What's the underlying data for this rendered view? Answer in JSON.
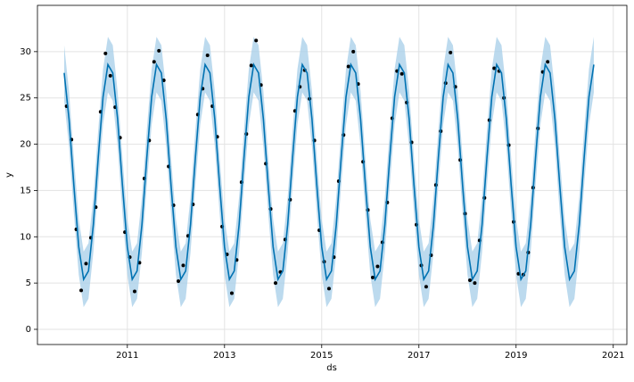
{
  "chart_data": {
    "type": "line",
    "xlabel": "ds",
    "ylabel": "y",
    "xlim": [
      2009.15,
      2021.28
    ],
    "ylim": [
      -1.64,
      35.0
    ],
    "xticks": [
      2011,
      2013,
      2015,
      2017,
      2019,
      2021
    ],
    "yticks": [
      0,
      5,
      10,
      15,
      20,
      25,
      30
    ],
    "grid": true,
    "band_color": "#a6cde8",
    "series": [
      {
        "type": "scatter",
        "color": "#000000",
        "x": [
          2009.75,
          2009.85,
          2009.95,
          2010.05,
          2010.15,
          2010.25,
          2010.35,
          2010.45,
          2010.55,
          2010.65,
          2010.75,
          2010.85,
          2010.95,
          2011.05,
          2011.15,
          2011.25,
          2011.35,
          2011.45,
          2011.55,
          2011.65,
          2011.75,
          2011.85,
          2011.95,
          2012.05,
          2012.15,
          2012.25,
          2012.35,
          2012.45,
          2012.55,
          2012.65,
          2012.75,
          2012.85,
          2012.95,
          2013.05,
          2013.15,
          2013.25,
          2013.35,
          2013.45,
          2013.55,
          2013.65,
          2013.75,
          2013.85,
          2013.95,
          2014.05,
          2014.15,
          2014.25,
          2014.35,
          2014.45,
          2014.55,
          2014.65,
          2014.75,
          2014.85,
          2014.95,
          2015.05,
          2015.15,
          2015.25,
          2015.35,
          2015.45,
          2015.55,
          2015.65,
          2015.75,
          2015.85,
          2015.95,
          2016.05,
          2016.15,
          2016.25,
          2016.35,
          2016.45,
          2016.55,
          2016.65,
          2016.75,
          2016.85,
          2016.95,
          2017.05,
          2017.15,
          2017.25,
          2017.35,
          2017.45,
          2017.55,
          2017.65,
          2017.75,
          2017.85,
          2017.95,
          2018.05,
          2018.15,
          2018.25,
          2018.35,
          2018.45,
          2018.55,
          2018.65,
          2018.75,
          2018.85,
          2018.95,
          2019.05,
          2019.15,
          2019.25,
          2019.35,
          2019.45,
          2019.55,
          2019.65
        ],
        "values": [
          24.1,
          20.5,
          10.8,
          4.2,
          7.1,
          9.9,
          13.2,
          23.5,
          29.8,
          27.4,
          24.0,
          20.7,
          10.5,
          7.8,
          4.1,
          7.2,
          16.3,
          20.4,
          28.9,
          30.1,
          26.9,
          17.6,
          13.4,
          5.2,
          6.9,
          10.1,
          13.5,
          23.2,
          26.0,
          29.6,
          24.1,
          20.8,
          11.1,
          8.1,
          3.9,
          7.5,
          15.9,
          21.1,
          28.5,
          31.2,
          26.4,
          17.9,
          13.0,
          5.0,
          6.2,
          9.7,
          14.0,
          23.6,
          26.2,
          28.0,
          24.9,
          20.4,
          10.7,
          7.3,
          4.4,
          7.8,
          16.0,
          21.0,
          28.4,
          30.0,
          26.5,
          18.1,
          12.9,
          5.6,
          6.8,
          9.4,
          13.7,
          22.8,
          27.9,
          27.6,
          24.5,
          20.2,
          11.3,
          6.9,
          4.6,
          8.0,
          15.6,
          21.4,
          26.6,
          29.9,
          26.2,
          18.3,
          12.5,
          5.3,
          5.0,
          9.6,
          14.2,
          22.6,
          28.2,
          27.9,
          25.0,
          19.9,
          11.6,
          6.0,
          5.9,
          8.3,
          15.3,
          21.7,
          27.8,
          28.9
        ]
      },
      {
        "type": "line",
        "color": "#0072b2",
        "x": [
          2009.7,
          2009.8,
          2009.9,
          2010.0,
          2010.1,
          2010.2,
          2010.3,
          2010.4,
          2010.5,
          2010.6,
          2010.7,
          2010.8,
          2010.9,
          2011.0,
          2011.1,
          2011.2,
          2011.3,
          2011.4,
          2011.5,
          2011.6,
          2011.7,
          2011.8,
          2011.9,
          2012.0,
          2012.1,
          2012.2,
          2012.3,
          2012.4,
          2012.5,
          2012.6,
          2012.7,
          2012.8,
          2012.9,
          2013.0,
          2013.1,
          2013.2,
          2013.3,
          2013.4,
          2013.5,
          2013.6,
          2013.7,
          2013.8,
          2013.9,
          2014.0,
          2014.1,
          2014.2,
          2014.3,
          2014.4,
          2014.5,
          2014.6,
          2014.7,
          2014.8,
          2014.9,
          2015.0,
          2015.1,
          2015.2,
          2015.3,
          2015.4,
          2015.5,
          2015.6,
          2015.7,
          2015.8,
          2015.9,
          2016.0,
          2016.1,
          2016.2,
          2016.3,
          2016.4,
          2016.5,
          2016.6,
          2016.7,
          2016.8,
          2016.9,
          2017.0,
          2017.1,
          2017.2,
          2017.3,
          2017.4,
          2017.5,
          2017.6,
          2017.7,
          2017.8,
          2017.9,
          2018.0,
          2018.1,
          2018.2,
          2018.3,
          2018.4,
          2018.5,
          2018.6,
          2018.7,
          2018.8,
          2018.9,
          2019.0,
          2019.1,
          2019.2,
          2019.3,
          2019.4,
          2019.5,
          2019.6,
          2019.7,
          2019.8,
          2019.9,
          2020.0,
          2020.1,
          2020.2,
          2020.3,
          2020.4,
          2020.5,
          2020.6
        ],
        "values": [
          27.7,
          22.7,
          15.5,
          8.9,
          5.4,
          6.3,
          11.3,
          18.5,
          25.1,
          28.6,
          27.7,
          22.7,
          15.5,
          8.9,
          5.4,
          6.3,
          11.3,
          18.5,
          25.1,
          28.6,
          27.7,
          22.7,
          15.5,
          8.9,
          5.4,
          6.3,
          11.3,
          18.5,
          25.1,
          28.6,
          27.7,
          22.7,
          15.5,
          8.9,
          5.4,
          6.3,
          11.3,
          18.5,
          25.1,
          28.6,
          27.7,
          22.7,
          15.5,
          8.9,
          5.4,
          6.3,
          11.3,
          18.5,
          25.1,
          28.6,
          27.7,
          22.7,
          15.5,
          8.9,
          5.4,
          6.3,
          11.3,
          18.5,
          25.1,
          28.6,
          27.7,
          22.7,
          15.5,
          8.9,
          5.4,
          6.3,
          11.3,
          18.5,
          25.1,
          28.6,
          27.7,
          22.7,
          15.5,
          8.9,
          5.4,
          6.3,
          11.3,
          18.5,
          25.1,
          28.6,
          27.7,
          22.7,
          15.5,
          8.9,
          5.4,
          6.3,
          11.3,
          18.5,
          25.1,
          28.6,
          27.7,
          22.7,
          15.5,
          8.9,
          5.4,
          6.3,
          11.3,
          18.5,
          25.1,
          28.6,
          27.7,
          22.7,
          15.5,
          8.9,
          5.4,
          6.3,
          11.3,
          18.5,
          25.1,
          28.6
        ],
        "lower": [
          24.7,
          19.7,
          12.5,
          5.9,
          2.4,
          3.3,
          8.3,
          15.5,
          22.1,
          25.6,
          24.7,
          19.7,
          12.5,
          5.9,
          2.4,
          3.3,
          8.3,
          15.5,
          22.1,
          25.6,
          24.7,
          19.7,
          12.5,
          5.9,
          2.4,
          3.3,
          8.3,
          15.5,
          22.1,
          25.6,
          24.7,
          19.7,
          12.5,
          5.9,
          2.4,
          3.3,
          8.3,
          15.5,
          22.1,
          25.6,
          24.7,
          19.7,
          12.5,
          5.9,
          2.4,
          3.3,
          8.3,
          15.5,
          22.1,
          25.6,
          24.7,
          19.7,
          12.5,
          5.9,
          2.4,
          3.3,
          8.3,
          15.5,
          22.1,
          25.6,
          24.7,
          19.7,
          12.5,
          5.9,
          2.4,
          3.3,
          8.3,
          15.5,
          22.1,
          25.6,
          24.7,
          19.7,
          12.5,
          5.9,
          2.4,
          3.3,
          8.3,
          15.5,
          22.1,
          25.6,
          24.7,
          19.7,
          12.5,
          5.9,
          2.4,
          3.3,
          8.3,
          15.5,
          22.1,
          25.6,
          24.7,
          19.7,
          12.5,
          5.9,
          2.4,
          3.3,
          8.3,
          15.5,
          22.1,
          25.6,
          24.7,
          19.7,
          12.5,
          5.9,
          2.4,
          3.3,
          8.3,
          15.5,
          22.1,
          25.6
        ],
        "upper": [
          30.7,
          25.7,
          18.5,
          11.9,
          8.4,
          9.3,
          14.3,
          21.5,
          28.1,
          31.6,
          30.7,
          25.7,
          18.5,
          11.9,
          8.4,
          9.3,
          14.3,
          21.5,
          28.1,
          31.6,
          30.7,
          25.7,
          18.5,
          11.9,
          8.4,
          9.3,
          14.3,
          21.5,
          28.1,
          31.6,
          30.7,
          25.7,
          18.5,
          11.9,
          8.4,
          9.3,
          14.3,
          21.5,
          28.1,
          31.6,
          30.7,
          25.7,
          18.5,
          11.9,
          8.4,
          9.3,
          14.3,
          21.5,
          28.1,
          31.6,
          30.7,
          25.7,
          18.5,
          11.9,
          8.4,
          9.3,
          14.3,
          21.5,
          28.1,
          31.6,
          30.7,
          25.7,
          18.5,
          11.9,
          8.4,
          9.3,
          14.3,
          21.5,
          28.1,
          31.6,
          30.7,
          25.7,
          18.5,
          11.9,
          8.4,
          9.3,
          14.3,
          21.5,
          28.1,
          31.6,
          30.7,
          25.7,
          18.5,
          11.9,
          8.4,
          9.3,
          14.3,
          21.5,
          28.1,
          31.6,
          30.7,
          25.7,
          18.5,
          11.9,
          8.4,
          9.3,
          14.3,
          21.5,
          28.1,
          31.6,
          30.7,
          25.7,
          18.5,
          11.9,
          8.4,
          9.3,
          14.3,
          21.5,
          28.1,
          31.6
        ]
      }
    ]
  }
}
